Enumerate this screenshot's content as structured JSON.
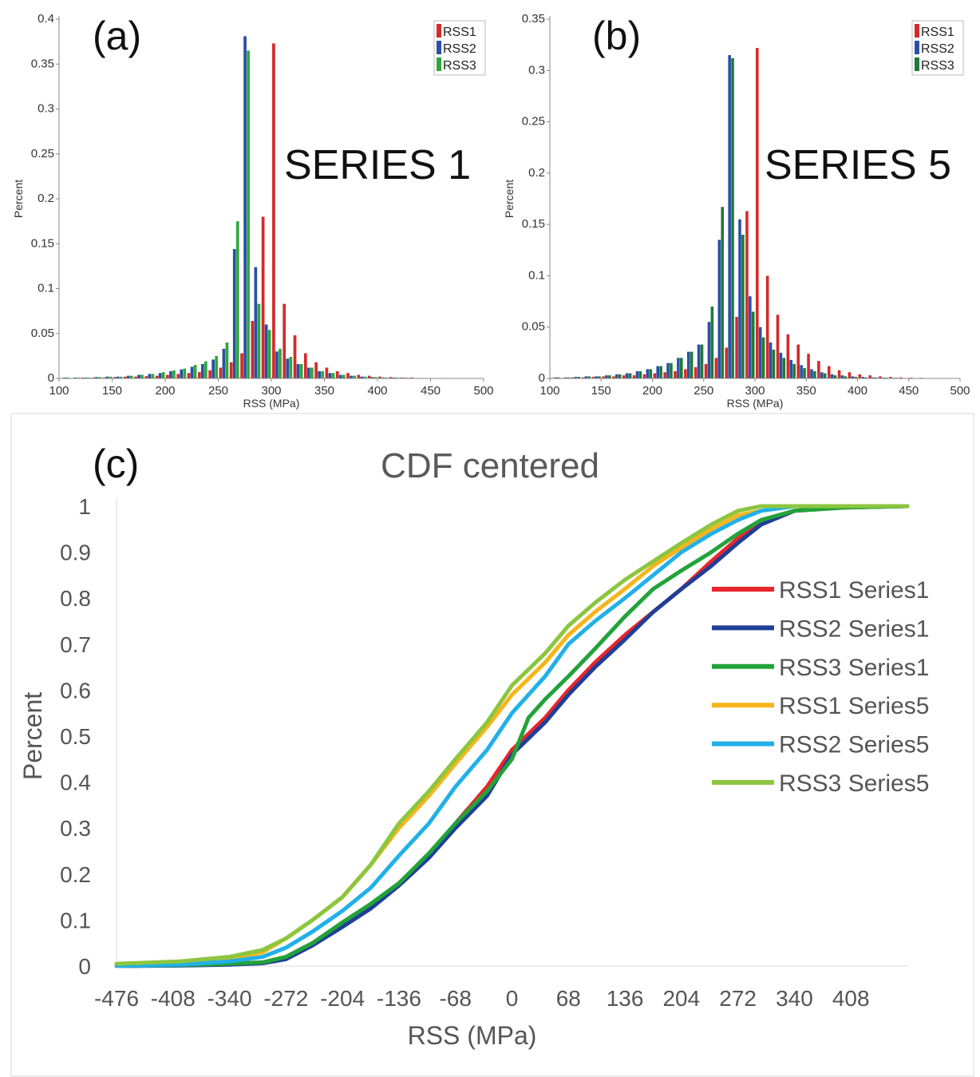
{
  "chart_data": [
    {
      "type": "bar",
      "panel_label": "(a)",
      "annotation": "SERIES 1",
      "xlabel": "RSS (MPa)",
      "ylabel": "Percent",
      "xlim": [
        100,
        500
      ],
      "ylim": [
        0,
        0.4
      ],
      "xticks": [
        "100",
        "150",
        "200",
        "250",
        "300",
        "350",
        "400",
        "450",
        "500"
      ],
      "yticks": [
        "0",
        "0.05",
        "0.1",
        "0.15",
        "0.2",
        "0.25",
        "0.3",
        "0.35",
        "0.4"
      ],
      "legend_position": "top-right",
      "series": [
        {
          "name": "RSS1",
          "color": "#d42a2a",
          "x": [
            100,
            110,
            120,
            130,
            140,
            150,
            160,
            170,
            180,
            190,
            200,
            210,
            220,
            230,
            240,
            250,
            260,
            270,
            280,
            290,
            300,
            310,
            320,
            330,
            340,
            350,
            360,
            370,
            380,
            390,
            400,
            410,
            420,
            430,
            440,
            450,
            460,
            470,
            480,
            490
          ],
          "values": [
            0.0005,
            0.0005,
            0.001,
            0.001,
            0.001,
            0.0015,
            0.002,
            0.002,
            0.0025,
            0.003,
            0.004,
            0.005,
            0.006,
            0.007,
            0.009,
            0.012,
            0.018,
            0.028,
            0.064,
            0.18,
            0.373,
            0.083,
            0.048,
            0.028,
            0.018,
            0.012,
            0.008,
            0.006,
            0.004,
            0.003,
            0.002,
            0.0015,
            0.001,
            0.001,
            0.0005,
            0.0005,
            0.0005,
            0.0003,
            0.0002,
            0.0002
          ]
        },
        {
          "name": "RSS2",
          "color": "#2a4fa8",
          "x": [
            100,
            110,
            120,
            130,
            140,
            150,
            160,
            170,
            180,
            190,
            200,
            210,
            220,
            230,
            240,
            250,
            260,
            270,
            280,
            290,
            300,
            310,
            320,
            330,
            340,
            350,
            360,
            370,
            380,
            390,
            400,
            410,
            420,
            430,
            440,
            450,
            460,
            470,
            480,
            490
          ],
          "values": [
            0.001,
            0.001,
            0.001,
            0.0015,
            0.002,
            0.002,
            0.003,
            0.004,
            0.005,
            0.006,
            0.008,
            0.01,
            0.013,
            0.016,
            0.021,
            0.033,
            0.144,
            0.381,
            0.124,
            0.06,
            0.03,
            0.022,
            0.016,
            0.012,
            0.008,
            0.006,
            0.004,
            0.003,
            0.002,
            0.0015,
            0.001,
            0.001,
            0.0008,
            0.0005,
            0.0004,
            0.0003,
            0.0002,
            0.0002,
            0.0001,
            0.0001
          ]
        },
        {
          "name": "RSS3",
          "color": "#2ea83a",
          "x": [
            100,
            110,
            120,
            130,
            140,
            150,
            160,
            170,
            180,
            190,
            200,
            210,
            220,
            230,
            240,
            250,
            260,
            270,
            280,
            290,
            300,
            310,
            320,
            330,
            340,
            350,
            360,
            370,
            380,
            390,
            400,
            410,
            420,
            430,
            440,
            450,
            460,
            470,
            480,
            490
          ],
          "values": [
            0.001,
            0.001,
            0.001,
            0.0015,
            0.002,
            0.002,
            0.003,
            0.004,
            0.005,
            0.007,
            0.009,
            0.011,
            0.015,
            0.019,
            0.025,
            0.04,
            0.175,
            0.365,
            0.083,
            0.054,
            0.033,
            0.024,
            0.016,
            0.012,
            0.008,
            0.006,
            0.004,
            0.003,
            0.002,
            0.0015,
            0.001,
            0.001,
            0.0008,
            0.0005,
            0.0004,
            0.0003,
            0.0002,
            0.0002,
            0.0001,
            0.0001
          ]
        }
      ]
    },
    {
      "type": "bar",
      "panel_label": "(b)",
      "annotation": "SERIES 5",
      "xlabel": "RSS (MPa)",
      "ylabel": "Percent",
      "xlim": [
        100,
        500
      ],
      "ylim": [
        0,
        0.35
      ],
      "xticks": [
        "100",
        "150",
        "200",
        "250",
        "300",
        "350",
        "400",
        "450",
        "500"
      ],
      "yticks": [
        "0",
        "0.05",
        "0.1",
        "0.15",
        "0.2",
        "0.25",
        "0.3",
        "0.35"
      ],
      "legend_position": "top-right",
      "series": [
        {
          "name": "RSS1",
          "color": "#d42a2a",
          "x": [
            100,
            110,
            120,
            130,
            140,
            150,
            160,
            170,
            180,
            190,
            200,
            210,
            220,
            230,
            240,
            250,
            260,
            270,
            280,
            290,
            300,
            310,
            320,
            330,
            340,
            350,
            360,
            370,
            380,
            390,
            400,
            410,
            420,
            430,
            440,
            450,
            460,
            470,
            480,
            490
          ],
          "values": [
            0.0005,
            0.0005,
            0.001,
            0.001,
            0.0015,
            0.002,
            0.002,
            0.003,
            0.003,
            0.004,
            0.005,
            0.006,
            0.007,
            0.009,
            0.011,
            0.014,
            0.02,
            0.03,
            0.06,
            0.163,
            0.322,
            0.1,
            0.062,
            0.043,
            0.033,
            0.024,
            0.017,
            0.012,
            0.008,
            0.006,
            0.004,
            0.003,
            0.002,
            0.0015,
            0.001,
            0.0008,
            0.0006,
            0.0004,
            0.0003,
            0.0002
          ]
        },
        {
          "name": "RSS2",
          "color": "#2a4fa8",
          "x": [
            100,
            110,
            120,
            130,
            140,
            150,
            160,
            170,
            180,
            190,
            200,
            210,
            220,
            230,
            240,
            250,
            260,
            270,
            280,
            290,
            300,
            310,
            320,
            330,
            340,
            350,
            360,
            370,
            380,
            390,
            400,
            410,
            420,
            430,
            440,
            450,
            460,
            470,
            480,
            490
          ],
          "values": [
            0.001,
            0.001,
            0.0015,
            0.002,
            0.002,
            0.003,
            0.004,
            0.005,
            0.007,
            0.009,
            0.012,
            0.015,
            0.02,
            0.026,
            0.033,
            0.055,
            0.135,
            0.315,
            0.155,
            0.08,
            0.05,
            0.035,
            0.025,
            0.018,
            0.013,
            0.009,
            0.006,
            0.004,
            0.003,
            0.002,
            0.0015,
            0.001,
            0.0008,
            0.0006,
            0.0004,
            0.0003,
            0.0002,
            0.0002,
            0.0001,
            0.0001
          ]
        },
        {
          "name": "RSS3",
          "color": "#1e7a36",
          "x": [
            100,
            110,
            120,
            130,
            140,
            150,
            160,
            170,
            180,
            190,
            200,
            210,
            220,
            230,
            240,
            250,
            260,
            270,
            280,
            290,
            300,
            310,
            320,
            330,
            340,
            350,
            360,
            370,
            380,
            390,
            400,
            410,
            420,
            430,
            440,
            450,
            460,
            470,
            480,
            490
          ],
          "values": [
            0.001,
            0.001,
            0.0015,
            0.002,
            0.002,
            0.003,
            0.004,
            0.005,
            0.007,
            0.009,
            0.012,
            0.015,
            0.02,
            0.026,
            0.033,
            0.07,
            0.167,
            0.312,
            0.14,
            0.065,
            0.04,
            0.028,
            0.02,
            0.014,
            0.01,
            0.007,
            0.005,
            0.003,
            0.002,
            0.0015,
            0.001,
            0.001,
            0.0008,
            0.0006,
            0.0004,
            0.0003,
            0.0002,
            0.0002,
            0.0001,
            0.0001
          ]
        }
      ]
    },
    {
      "type": "line",
      "panel_label": "(c)",
      "title": "CDF centered",
      "xlabel": "RSS (MPa)",
      "ylabel": "Percent",
      "xlim": [
        -476,
        476
      ],
      "ylim": [
        0,
        1
      ],
      "xticks": [
        "-476",
        "-408",
        "-340",
        "-272",
        "-204",
        "-136",
        "-68",
        "0",
        "68",
        "136",
        "204",
        "272",
        "340",
        "408"
      ],
      "yticks": [
        "0",
        "0.1",
        "0.2",
        "0.3",
        "0.4",
        "0.5",
        "0.6",
        "0.7",
        "0.8",
        "0.9",
        "1"
      ],
      "grid": false,
      "legend_position": "right",
      "series": [
        {
          "name": "RSS1 Series1",
          "color": "#e8262a",
          "x": [
            -476,
            -400,
            -340,
            -300,
            -272,
            -240,
            -204,
            -170,
            -136,
            -100,
            -68,
            -30,
            0,
            40,
            68,
            100,
            136,
            170,
            204,
            240,
            272,
            300,
            340,
            400,
            476
          ],
          "y": [
            0,
            0.002,
            0.005,
            0.008,
            0.02,
            0.05,
            0.09,
            0.13,
            0.18,
            0.24,
            0.31,
            0.39,
            0.47,
            0.54,
            0.6,
            0.66,
            0.72,
            0.77,
            0.82,
            0.88,
            0.93,
            0.96,
            0.99,
            0.997,
            1
          ]
        },
        {
          "name": "RSS2 Series1",
          "color": "#1f3f98",
          "x": [
            -476,
            -400,
            -340,
            -300,
            -272,
            -240,
            -204,
            -170,
            -136,
            -100,
            -68,
            -30,
            0,
            40,
            68,
            100,
            136,
            170,
            204,
            240,
            272,
            300,
            340,
            400,
            476
          ],
          "y": [
            0,
            0.001,
            0.003,
            0.006,
            0.015,
            0.045,
            0.085,
            0.125,
            0.175,
            0.235,
            0.3,
            0.37,
            0.46,
            0.53,
            0.59,
            0.65,
            0.71,
            0.77,
            0.82,
            0.87,
            0.92,
            0.96,
            0.99,
            0.998,
            1
          ]
        },
        {
          "name": "RSS3 Series1",
          "color": "#22a33a",
          "x": [
            -476,
            -400,
            -340,
            -300,
            -272,
            -240,
            -204,
            -170,
            -136,
            -100,
            -68,
            -30,
            0,
            20,
            40,
            68,
            100,
            136,
            170,
            204,
            240,
            272,
            300,
            340,
            400,
            476
          ],
          "y": [
            0,
            0.002,
            0.005,
            0.008,
            0.02,
            0.05,
            0.095,
            0.135,
            0.18,
            0.245,
            0.31,
            0.38,
            0.45,
            0.54,
            0.58,
            0.63,
            0.69,
            0.76,
            0.82,
            0.86,
            0.9,
            0.94,
            0.97,
            0.99,
            0.997,
            1
          ]
        },
        {
          "name": "RSS1 Series5",
          "color": "#f7b51c",
          "x": [
            -476,
            -400,
            -340,
            -300,
            -272,
            -240,
            -204,
            -170,
            -136,
            -100,
            -68,
            -30,
            0,
            40,
            68,
            100,
            136,
            170,
            204,
            240,
            272,
            300,
            340,
            400,
            476
          ],
          "y": [
            0,
            0.005,
            0.015,
            0.03,
            0.06,
            0.1,
            0.15,
            0.22,
            0.3,
            0.37,
            0.44,
            0.52,
            0.59,
            0.66,
            0.72,
            0.77,
            0.82,
            0.87,
            0.91,
            0.95,
            0.98,
            0.99,
            1,
            1,
            1
          ]
        },
        {
          "name": "RSS2 Series5",
          "color": "#22b0e8",
          "x": [
            -476,
            -400,
            -340,
            -300,
            -272,
            -240,
            -204,
            -170,
            -136,
            -100,
            -68,
            -30,
            0,
            40,
            68,
            100,
            136,
            170,
            204,
            240,
            272,
            300,
            340,
            400,
            476
          ],
          "y": [
            0,
            0.003,
            0.01,
            0.02,
            0.04,
            0.075,
            0.12,
            0.17,
            0.24,
            0.31,
            0.39,
            0.47,
            0.55,
            0.63,
            0.7,
            0.75,
            0.8,
            0.85,
            0.9,
            0.94,
            0.97,
            0.99,
            1,
            1,
            1
          ]
        },
        {
          "name": "RSS3 Series5",
          "color": "#8cc63f",
          "x": [
            -476,
            -400,
            -340,
            -300,
            -272,
            -240,
            -204,
            -170,
            -136,
            -100,
            -68,
            -30,
            0,
            40,
            68,
            100,
            136,
            170,
            204,
            240,
            272,
            300,
            340,
            400,
            476
          ],
          "y": [
            0.005,
            0.01,
            0.02,
            0.035,
            0.06,
            0.1,
            0.15,
            0.22,
            0.31,
            0.38,
            0.45,
            0.53,
            0.61,
            0.68,
            0.74,
            0.79,
            0.84,
            0.88,
            0.92,
            0.96,
            0.99,
            1,
            1,
            1,
            1
          ]
        }
      ]
    }
  ]
}
